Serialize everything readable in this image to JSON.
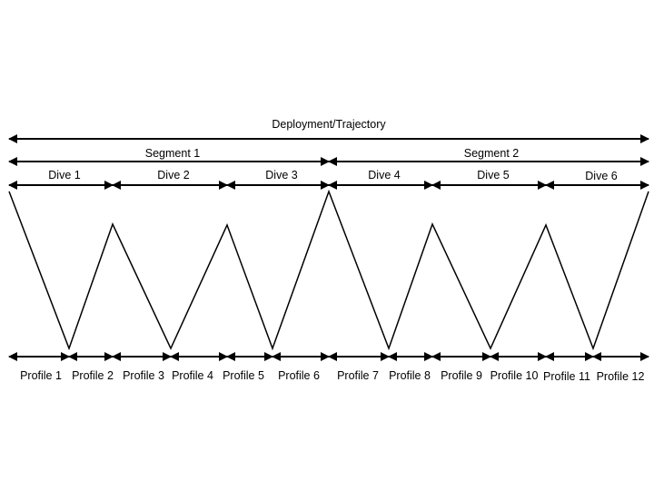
{
  "deployment": {
    "label": "Deployment/Trajectory"
  },
  "segments": [
    {
      "label": "Segment 1"
    },
    {
      "label": "Segment 2"
    }
  ],
  "dives": [
    {
      "label": "Dive 1"
    },
    {
      "label": "Dive 2"
    },
    {
      "label": "Dive 3"
    },
    {
      "label": "Dive 4"
    },
    {
      "label": "Dive 5"
    },
    {
      "label": "Dive 6"
    }
  ],
  "profiles": [
    {
      "label": "Profile 1"
    },
    {
      "label": "Profile 2"
    },
    {
      "label": "Profile 3"
    },
    {
      "label": "Profile 4"
    },
    {
      "label": "Profile 5"
    },
    {
      "label": "Profile 6"
    },
    {
      "label": "Profile 7"
    },
    {
      "label": "Profile 8"
    },
    {
      "label": "Profile 9"
    },
    {
      "label": "Profile 10"
    },
    {
      "label": "Profile 11"
    },
    {
      "label": "Profile 12"
    }
  ],
  "colors": {
    "ink": "#000000",
    "background": "#ffffff"
  }
}
